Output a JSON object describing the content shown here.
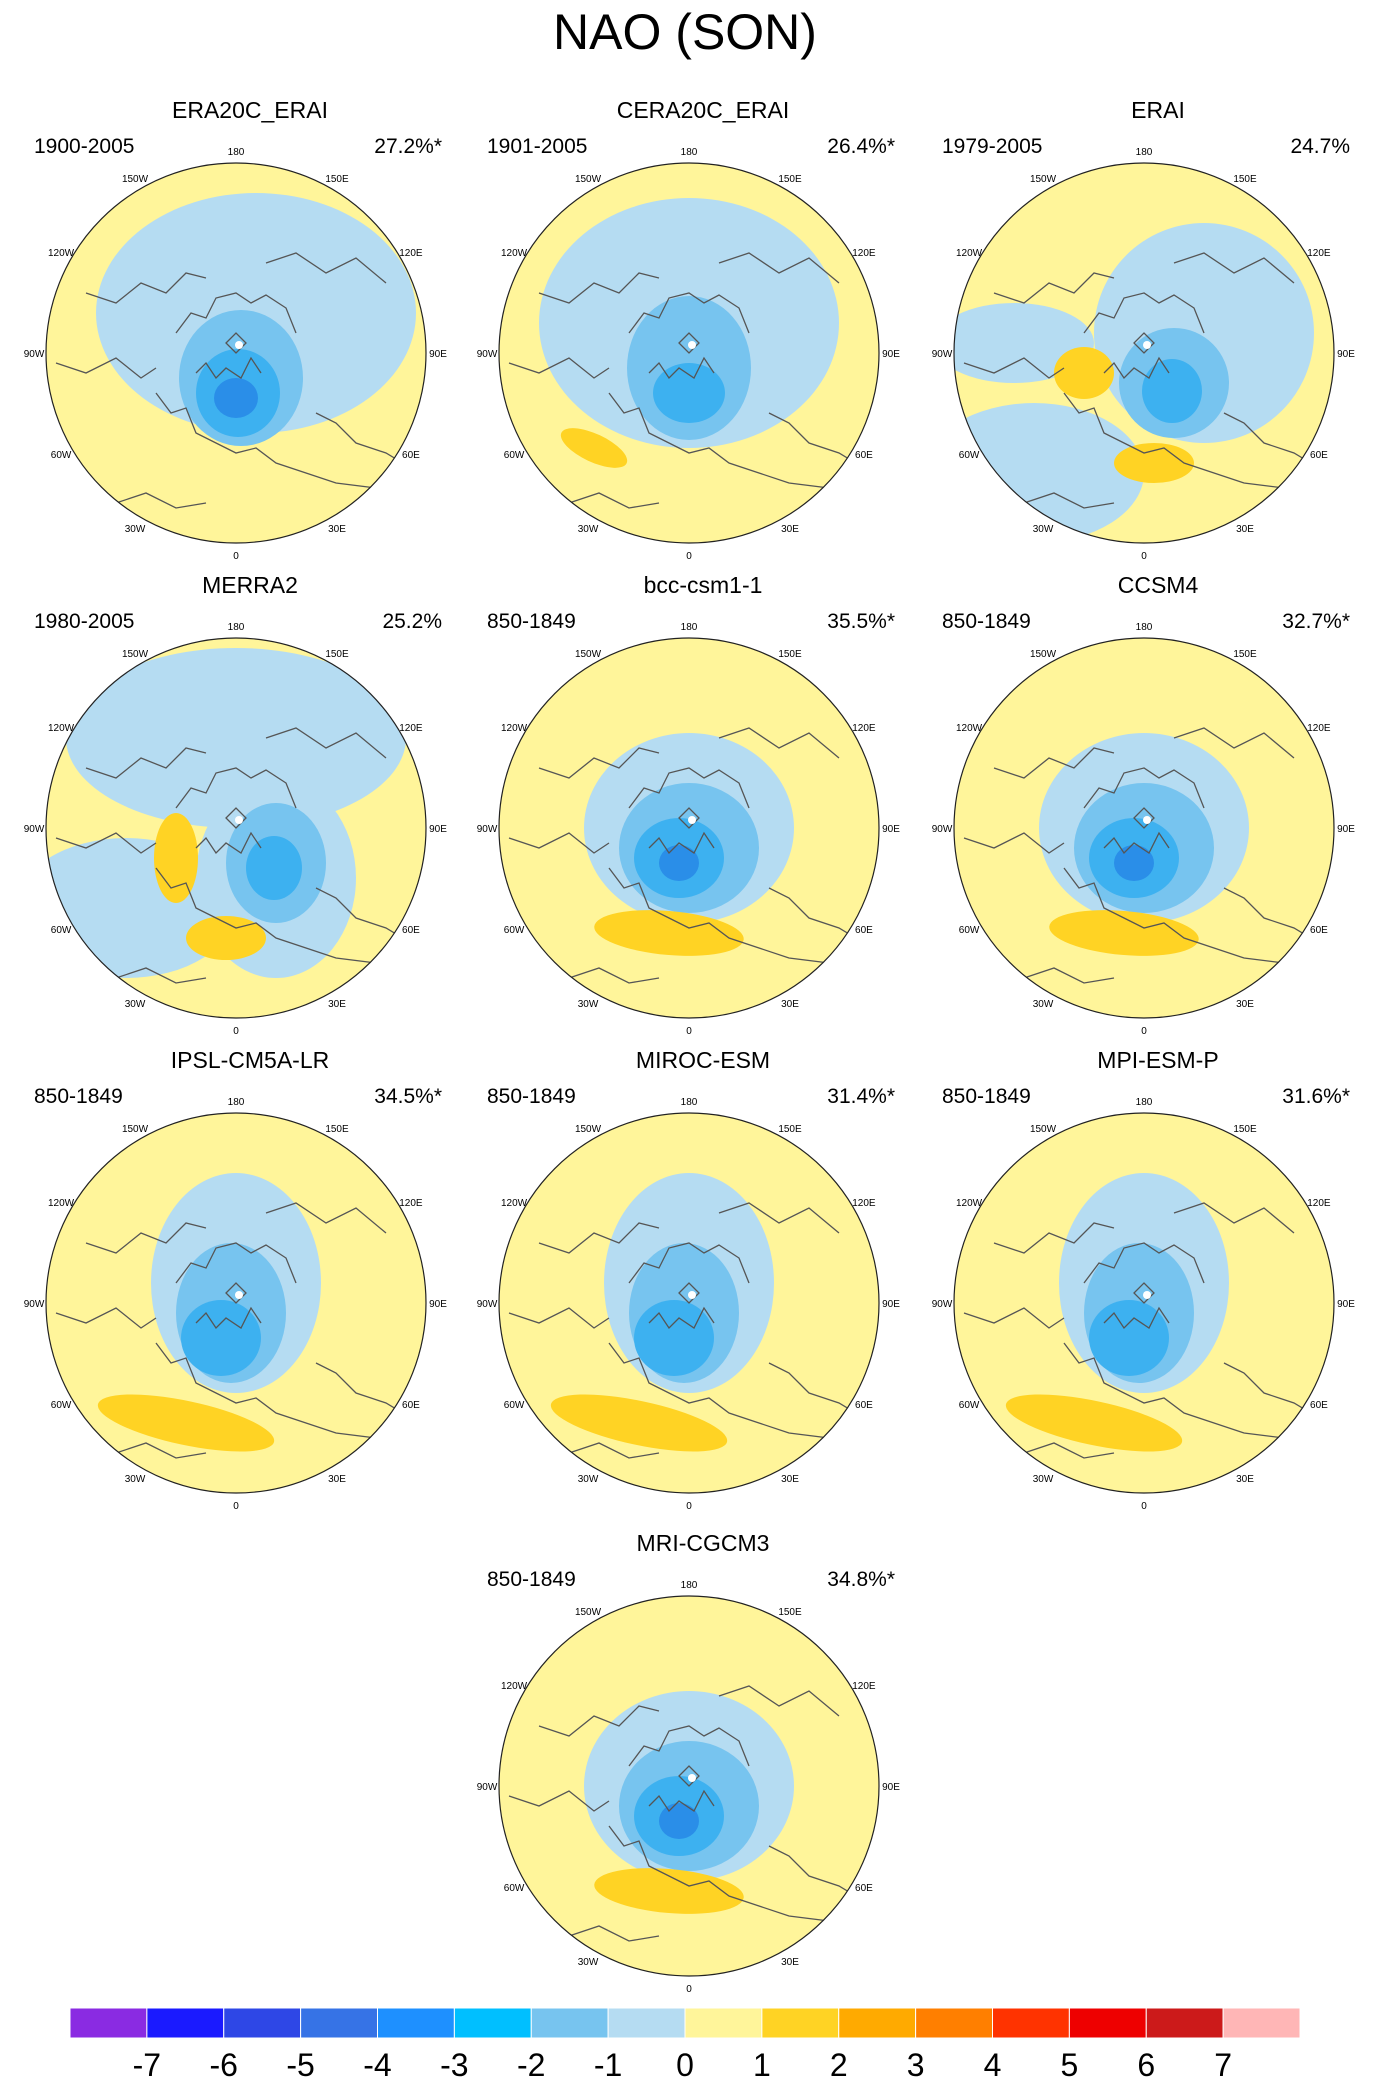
{
  "title": "NAO (SON)",
  "panels": [
    {
      "name": "ERA20C_ERAI",
      "period": "1900-2005",
      "variance": "27.2%*"
    },
    {
      "name": "CERA20C_ERAI",
      "period": "1901-2005",
      "variance": "26.4%*"
    },
    {
      "name": "ERAI",
      "period": "1979-2005",
      "variance": "24.7%"
    },
    {
      "name": "MERRA2",
      "period": "1980-2005",
      "variance": "25.2%"
    },
    {
      "name": "bcc-csm1-1",
      "period": "850-1849",
      "variance": "35.5%*"
    },
    {
      "name": "CCSM4",
      "period": "850-1849",
      "variance": "32.7%*"
    },
    {
      "name": "IPSL-CM5A-LR",
      "period": "850-1849",
      "variance": "34.5%*"
    },
    {
      "name": "MIROC-ESM",
      "period": "850-1849",
      "variance": "31.4%*"
    },
    {
      "name": "MPI-ESM-P",
      "period": "850-1849",
      "variance": "31.6%*"
    },
    {
      "name": "MRI-CGCM3",
      "period": "850-1849",
      "variance": "34.8%*"
    }
  ],
  "longitude_labels": [
    "180",
    "150E",
    "120E",
    "90E",
    "60E",
    "30E",
    "0",
    "30W",
    "60W",
    "90W",
    "120W",
    "150W"
  ],
  "colorbar": {
    "ticks": [
      "-7",
      "-6",
      "-5",
      "-4",
      "-3",
      "-2",
      "-1",
      "0",
      "1",
      "2",
      "3",
      "4",
      "5",
      "6",
      "7"
    ],
    "colors": [
      "#8a2be2",
      "#1a1aff",
      "#2e47e6",
      "#3673e6",
      "#1e90ff",
      "#00bfff",
      "#77c4ef",
      "#b5dcf2",
      "#fff59a",
      "#ffd324",
      "#ffaa00",
      "#ff7f00",
      "#ff3300",
      "#ee0000",
      "#cc1a1a",
      "#ffb6b6"
    ]
  }
}
